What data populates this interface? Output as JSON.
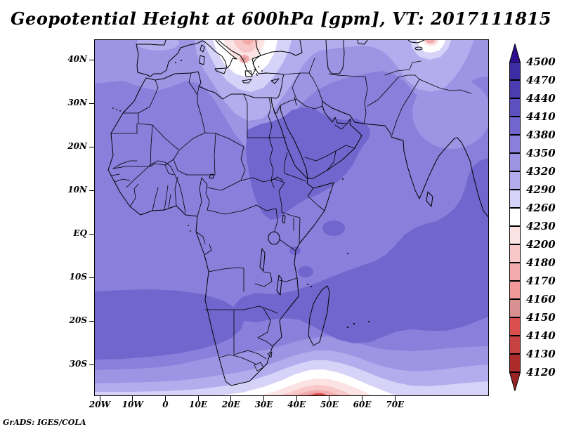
{
  "title": "Geopotential Height at 600hPa [gpm], VT: 2017111815",
  "credit": "GrADS: IGES/COLA",
  "axes": {
    "lat_labels": [
      "40N",
      "30N",
      "20N",
      "10N",
      "EQ",
      "10S",
      "20S",
      "30S"
    ],
    "lon_labels": [
      "20W",
      "10W",
      "0",
      "10E",
      "20E",
      "30E",
      "40E",
      "50E",
      "60E",
      "70E"
    ]
  },
  "colorbar": {
    "labels": [
      "4500",
      "4470",
      "4440",
      "4410",
      "4380",
      "4350",
      "4320",
      "4290",
      "4260",
      "4230",
      "4200",
      "4180",
      "4170",
      "4160",
      "4150",
      "4140",
      "4130",
      "4120"
    ],
    "colors": [
      "#2e0d91",
      "#3c2da4",
      "#4b3db1",
      "#5c50bf",
      "#7166cd",
      "#8a7fdb",
      "#9d94e4",
      "#b3adee",
      "#d7d3f8",
      "#ffffff",
      "#fbe3e3",
      "#f8c8c8",
      "#f4abab",
      "#f19898",
      "#d89090",
      "#dc4f4f",
      "#c64141",
      "#ad2b2b",
      "#9c2323"
    ]
  },
  "chart_data": {
    "type": "heatmap",
    "subtype": "filled-contour-map",
    "variable": "Geopotential Height",
    "level": "600hPa",
    "units": "gpm",
    "valid_time": "2017111815",
    "title": "Geopotential Height at 600hPa [gpm], VT: 2017111815",
    "region": "Africa, southern Europe, Middle East and western Indian Ocean (about 22W-98E, 37S-45N)",
    "lat_ticks": [
      "40N",
      "30N",
      "20N",
      "10N",
      "EQ",
      "10S",
      "20S",
      "30S"
    ],
    "lon_ticks": [
      "20W",
      "10W",
      "0",
      "10E",
      "20E",
      "30E",
      "40E",
      "50E",
      "60E",
      "70E"
    ],
    "contour_levels": [
      4120,
      4130,
      4140,
      4150,
      4160,
      4170,
      4180,
      4200,
      4230,
      4260,
      4290,
      4320,
      4350,
      4380,
      4410,
      4440,
      4470,
      4500
    ],
    "level_spacing": "10 gpm from 4120-4180, then 20 gpm to 4200, then 30 gpm from 4200-4500",
    "palette_high_to_low": [
      "#2e0d91",
      "#3c2da4",
      "#4b3db1",
      "#5c50bf",
      "#7166cd",
      "#8a7fdb",
      "#9d94e4",
      "#b3adee",
      "#d7d3f8",
      "#ffffff",
      "#fbe3e3",
      "#f8c8c8",
      "#f4abab",
      "#f19898",
      "#d89090",
      "#dc4f4f",
      "#c64141",
      "#ad2b2b",
      "#9c2323"
    ],
    "legend_position": "right, vertical color bar with open-ended arrows above 4500 and below 4120",
    "features": [
      "Broad field of 4350-4380 gpm (medium purple) covers most of Africa and the adjacent oceans",
      "Ridge of 4380-4410 gpm (darker purple) over Sudan, Ethiopia, the Horn of Africa and the Arabian Peninsula",
      "Dark 4380-4410 gpm areas also over the SE Atlantic near 20S-30S, the SW Indian Ocean around and east of Madagascar, and near the Indian coast",
      "Sharp trough / cut-off low over Greece and the central Mediterranean: values drop through 4320, 4290, 4260, white 4230-4260 band, to pinks below 4200 with a small red core near 4160-4170 over the Aegean",
      "Second low at the northern map edge near 65-75E with white and pink shading and a small red core",
      "Values decrease southward south of about 30S; at the southern boundary near 40-50E a low with pink/red shading reaches below 4150 gpm",
      "Lighter 4320-4350 gpm band across the northern subtropics and across southern South Africa"
    ]
  }
}
